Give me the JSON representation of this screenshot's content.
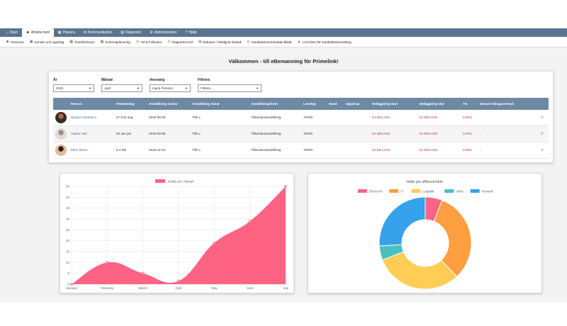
{
  "topnav": {
    "tabs": [
      {
        "label": "Start",
        "icon": "home-icon",
        "glyph": "⌂"
      },
      {
        "label": "Arbeta med",
        "icon": "users-icon",
        "glyph": "☻"
      },
      {
        "label": "Planera",
        "icon": "calendar-icon",
        "glyph": "▦"
      },
      {
        "label": "Kommunikation",
        "icon": "chat-icon",
        "glyph": "✉"
      },
      {
        "label": "Rapporter",
        "icon": "report-icon",
        "glyph": "▤"
      },
      {
        "label": "Administration",
        "icon": "gear-icon",
        "glyph": "⚙"
      },
      {
        "label": "Hjälp",
        "icon": "help-icon",
        "glyph": "?"
      }
    ]
  },
  "subnav": {
    "items": [
      {
        "label": "Resurser",
        "icon": "resources-icon",
        "glyph": "☻"
      },
      {
        "label": "Kunder och uppdrag",
        "icon": "briefcase-icon",
        "glyph": "▣"
      },
      {
        "label": "Överblicksvyn",
        "icon": "overview-icon",
        "glyph": "▦"
      },
      {
        "label": "Schemaplacering",
        "icon": "schedule-icon",
        "glyph": "▦"
      },
      {
        "label": "Tid & Frånvaro",
        "icon": "clock-icon",
        "glyph": "◷"
      },
      {
        "label": "Rapportera tid",
        "icon": "clock-icon",
        "glyph": "◷"
      },
      {
        "label": "Bokaren / Reklgnar Bokad",
        "icon": "booking-icon",
        "glyph": "▤"
      },
      {
        "label": "Kandidatnommandad tillsätt",
        "icon": "candidate-icon",
        "glyph": "◎"
      },
      {
        "label": "LAS-listor för kandidatsamordning",
        "icon": "list-icon",
        "glyph": "▲"
      }
    ]
  },
  "welcome": "Välkommen - till eBemanning för Primelink!",
  "filters": {
    "year": {
      "label": "År",
      "value": "2019"
    },
    "month": {
      "label": "Månad",
      "value": "April"
    },
    "manager": {
      "label": "Ansvarig",
      "value": "Ingrid Persson"
    },
    "filter": {
      "label": "Filtrera",
      "value": "Filtrera ..."
    }
  },
  "table": {
    "headers": [
      "Resurs",
      "Födelsedag",
      "Anställning startar",
      "Anställning slutar",
      "Anställningsform",
      "Lönetyp",
      "Hand",
      "Uppdrag",
      "Beläggning start",
      "Beläggning slut",
      "TG",
      "Senast tidrapporterad"
    ],
    "rows": [
      {
        "name": "Djinard Santiasco",
        "birthday": "27 Feb aug",
        "start": "2015-09-08",
        "end": "Tills v.",
        "form": "Tillsvidareanställning",
        "pay": "Timlön",
        "hand": "",
        "job": "",
        "bstart": "EJ BELAGD",
        "bend": "EJ BELAGD",
        "tg": "0,00%",
        "last": ""
      },
      {
        "name": "Hakan Hall",
        "birthday": "20 Jan jan",
        "start": "2015-09-08",
        "end": "Tills v.",
        "form": "Tillsvidareanställning",
        "pay": "Timlön",
        "hand": "",
        "job": "",
        "bstart": "EJ BELAGD",
        "bend": "EJ BELAGD",
        "tg": "0,00%",
        "last": "-"
      },
      {
        "name": "Ellen Strom",
        "birthday": "5 4 feb",
        "start": "2015-11-02",
        "end": "Tills v.",
        "form": "Tillsvidareanställning",
        "pay": "Timlön",
        "hand": "",
        "job": "",
        "bstart": "EJ BELAGD",
        "bend": "EJ BELAGD",
        "tg": "0,00%",
        "last": "-"
      }
    ]
  },
  "chart_data": [
    {
      "type": "area",
      "series": [
        {
          "name": "Intäkt per månad",
          "values": [
            0,
            10,
            5,
            1.5,
            19,
            29,
            45
          ]
        }
      ],
      "categories": [
        "January",
        "February",
        "March",
        "April",
        "May",
        "June",
        "July"
      ],
      "ylim": [
        0,
        45
      ],
      "yticks": [
        0,
        5,
        10,
        15,
        20,
        25,
        30,
        35,
        40,
        45
      ],
      "color": "#ff6384",
      "grid": true,
      "legend": "top"
    },
    {
      "type": "pie",
      "title": "Intäkt per affärsområde",
      "categories": [
        "Ekonomi",
        "IT",
        "Logistik",
        "Vård",
        "Konsult"
      ],
      "values": [
        6,
        32,
        31,
        5,
        26
      ],
      "colors": [
        "#ff6384",
        "#ff9f40",
        "#ffcd56",
        "#4bc0c0",
        "#36a2eb"
      ],
      "legend": "top"
    }
  ]
}
